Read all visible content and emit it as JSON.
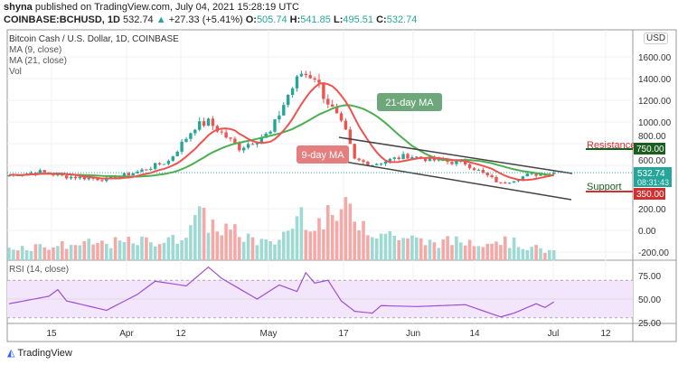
{
  "header": {
    "publisher": "shyna",
    "published_text": "published on TradingView.com, July 04, 2021 15:28:19 UTC",
    "symbol": "COINBASE:BCHUSD, 1D",
    "last": "532.74",
    "change": "+27.33 (+5.41%)",
    "o": "505.74",
    "h": "541.85",
    "l": "495.51",
    "c": "532.74"
  },
  "legend": {
    "title": "Bitcoin Cash / U.S. Dollar, 1D, COINBASE",
    "ma9": "MA (9, close)",
    "ma21": "MA (21, close)",
    "vol": "Vol"
  },
  "rsi_label": "RSI (14, close)",
  "currency": "USD",
  "annotations": {
    "ma21": "21-day MA",
    "ma9": "9-day MA",
    "resistance": "Resistance",
    "support": "Support"
  },
  "price_labels": {
    "resistance": "750.00",
    "last": "532.74",
    "countdown": "08:31:43",
    "support": "350.00"
  },
  "colors": {
    "up": "#26a69a",
    "down": "#ef5350",
    "ma9": "#ef5350",
    "ma21": "#4caf50",
    "rsi": "#9c4fd6",
    "resistance": "#1b5e20",
    "support": "#d32f2f"
  },
  "brand": "TradingView",
  "chart_data": {
    "type": "candlestick",
    "x_ticks": [
      "15",
      "Apr",
      "12",
      "May",
      "17",
      "Jun",
      "14",
      "Jul",
      "12"
    ],
    "price_ticks": [
      "1600.00",
      "1400.00",
      "1200.00",
      "1000.00",
      "800.00",
      "600.00",
      "200.00",
      "0.00",
      "-200.00"
    ],
    "rsi_ticks": [
      "75.00",
      "50.00",
      "25.00"
    ],
    "close_keypoints": [
      [
        "2021-03-03",
        510
      ],
      [
        "2021-03-10",
        540
      ],
      [
        "2021-03-15",
        500
      ],
      [
        "2021-03-25",
        470
      ],
      [
        "2021-04-01",
        540
      ],
      [
        "2021-04-08",
        640
      ],
      [
        "2021-04-14",
        960
      ],
      [
        "2021-04-17",
        1000
      ],
      [
        "2021-04-24",
        760
      ],
      [
        "2021-05-01",
        900
      ],
      [
        "2021-05-05",
        1250
      ],
      [
        "2021-05-08",
        1450
      ],
      [
        "2021-05-11",
        1420
      ],
      [
        "2021-05-13",
        1250
      ],
      [
        "2021-05-16",
        1050
      ],
      [
        "2021-05-18",
        900
      ],
      [
        "2021-05-20",
        650
      ],
      [
        "2021-05-24",
        610
      ],
      [
        "2021-06-01",
        690
      ],
      [
        "2021-06-08",
        640
      ],
      [
        "2021-06-14",
        620
      ],
      [
        "2021-06-22",
        430
      ],
      [
        "2021-06-28",
        510
      ],
      [
        "2021-07-04",
        532.74
      ]
    ],
    "volume_keypoints": [
      [
        "2021-03-03",
        0.25
      ],
      [
        "2021-04-10",
        0.4
      ],
      [
        "2021-04-14",
        0.9
      ],
      [
        "2021-04-18",
        0.7
      ],
      [
        "2021-05-01",
        0.3
      ],
      [
        "2021-05-05",
        0.6
      ],
      [
        "2021-05-08",
        0.95
      ],
      [
        "2021-05-12",
        0.75
      ],
      [
        "2021-05-19",
        1.0
      ],
      [
        "2021-05-24",
        0.6
      ],
      [
        "2021-06-05",
        0.35
      ],
      [
        "2021-06-22",
        0.4
      ],
      [
        "2021-07-04",
        0.15
      ]
    ],
    "rsi_keypoints": [
      [
        "2021-03-03",
        45
      ],
      [
        "2021-03-12",
        53
      ],
      [
        "2021-03-14",
        60
      ],
      [
        "2021-03-16",
        48
      ],
      [
        "2021-03-25",
        38
      ],
      [
        "2021-04-01",
        55
      ],
      [
        "2021-04-05",
        69
      ],
      [
        "2021-04-12",
        64
      ],
      [
        "2021-04-17",
        84
      ],
      [
        "2021-04-20",
        72
      ],
      [
        "2021-04-28",
        50
      ],
      [
        "2021-05-03",
        65
      ],
      [
        "2021-05-07",
        58
      ],
      [
        "2021-05-09",
        78
      ],
      [
        "2021-05-11",
        67
      ],
      [
        "2021-05-14",
        70
      ],
      [
        "2021-05-17",
        48
      ],
      [
        "2021-05-20",
        37
      ],
      [
        "2021-05-24",
        35
      ],
      [
        "2021-05-26",
        43
      ],
      [
        "2021-06-03",
        42
      ],
      [
        "2021-06-14",
        44
      ],
      [
        "2021-06-22",
        31
      ],
      [
        "2021-06-25",
        35
      ],
      [
        "2021-06-30",
        45
      ],
      [
        "2021-07-02",
        41
      ],
      [
        "2021-07-04",
        47
      ]
    ],
    "resistance": 750,
    "support": 350
  }
}
